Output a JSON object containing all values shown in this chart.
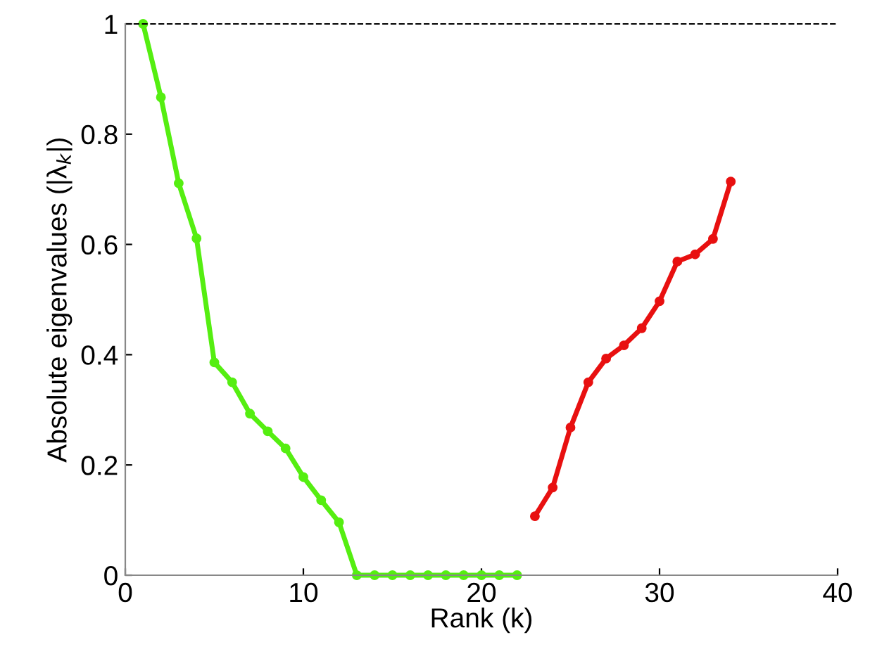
{
  "chart_data": {
    "type": "line",
    "xlabel": "Rank (k)",
    "ylabel": "Absolute eigenvalues (|λ$_{k}$|)",
    "xlim": [
      0,
      40
    ],
    "ylim": [
      0,
      1
    ],
    "xticks": [
      0,
      10,
      20,
      30,
      40
    ],
    "yticks": [
      0,
      0.2,
      0.4,
      0.6,
      0.8,
      1
    ],
    "marker": "circle",
    "line_style": "solid",
    "ref_lines": [
      {
        "axis": "y",
        "value": 1,
        "line_style": "dashed",
        "color": "#000000"
      }
    ],
    "series": [
      {
        "color": "#55ee11",
        "x": [
          1,
          2,
          3,
          4,
          5,
          6,
          7,
          8,
          9,
          10,
          11,
          12,
          13,
          14,
          15,
          16,
          17,
          18,
          19,
          20,
          21,
          22
        ],
        "values": [
          1.0,
          0.867,
          0.711,
          0.611,
          0.386,
          0.35,
          0.293,
          0.261,
          0.23,
          0.178,
          0.136,
          0.096,
          0,
          0,
          0,
          0,
          0,
          0,
          0,
          0,
          0,
          0
        ]
      },
      {
        "color": "#e81010",
        "x": [
          23,
          24,
          25,
          26,
          27,
          28,
          29,
          30,
          31,
          32,
          33,
          34
        ],
        "values": [
          0.107,
          0.159,
          0.268,
          0.35,
          0.393,
          0.417,
          0.448,
          0.497,
          0.569,
          0.582,
          0.61,
          0.714
        ]
      }
    ]
  }
}
